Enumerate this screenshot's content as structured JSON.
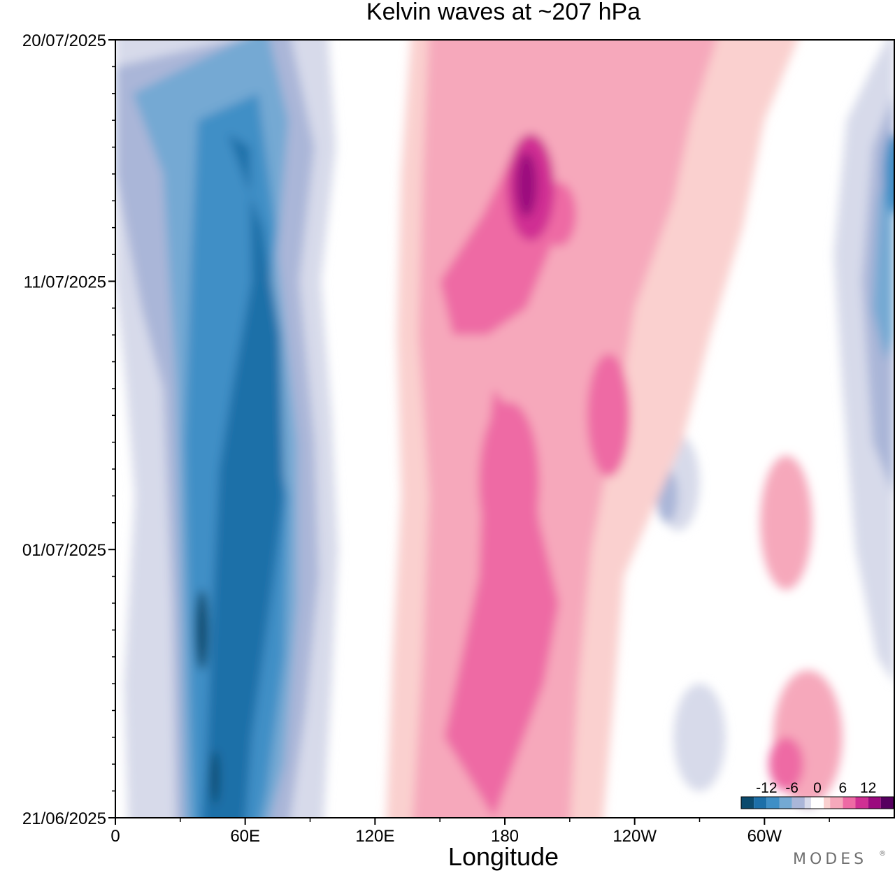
{
  "logo": "MODES",
  "logo_mark": "®",
  "chart_data": {
    "type": "heatmap",
    "title": "Kelvin waves at ~207 hPa",
    "xlabel": "Longitude",
    "ylabel": "",
    "x_ticks": [
      {
        "lon": 0,
        "label": "0"
      },
      {
        "lon": 60,
        "label": "60E"
      },
      {
        "lon": 120,
        "label": "120E"
      },
      {
        "lon": 180,
        "label": "180"
      },
      {
        "lon": 240,
        "label": "120W"
      },
      {
        "lon": 300,
        "label": "60W"
      }
    ],
    "x_range": [
      0,
      360
    ],
    "y_ticks": [
      {
        "day": 0,
        "label": "21/06/2025"
      },
      {
        "day": 10,
        "label": "01/07/2025"
      },
      {
        "day": 20,
        "label": "11/07/2025"
      },
      {
        "day": 29,
        "label": "20/07/2025"
      }
    ],
    "y_range_days": [
      0,
      29
    ],
    "colorbar": {
      "levels": [
        -15,
        -12,
        -9,
        -6,
        -3,
        -1.5,
        1.5,
        3,
        6,
        9,
        12,
        15
      ],
      "colors": [
        "#0b4a6d",
        "#1c6fa8",
        "#3f8fc6",
        "#74a9d3",
        "#aab6d8",
        "#d7daea",
        "#ffffff",
        "#fad0cf",
        "#f6a8bb",
        "#ee6aa4",
        "#d02f93",
        "#9b0a7e",
        "#56005f"
      ],
      "tick_labels": [
        {
          "value": -12,
          "label": "-12"
        },
        {
          "value": -6,
          "label": "-6"
        },
        {
          "value": 0,
          "label": "0"
        },
        {
          "value": 6,
          "label": "6"
        },
        {
          "value": 12,
          "label": "12"
        }
      ]
    },
    "features": [
      {
        "name": "negative band",
        "lon_center_day0": 55,
        "lon_center_day29": 60,
        "lon_width": 50,
        "peak": -10
      },
      {
        "name": "negative band east",
        "lon_center_day0": 82,
        "lon_center_day29": 78,
        "lon_width": 30,
        "peak": -5
      },
      {
        "name": "positive band",
        "lon_center_day0": 185,
        "lon_center_day29": 210,
        "lon_width": 70,
        "peak": 9
      },
      {
        "name": "positive maximum",
        "lon": 190,
        "day": 22,
        "peak": 13
      },
      {
        "name": "negative region far east",
        "lon": 350,
        "day": 22,
        "peak": -7
      }
    ]
  }
}
